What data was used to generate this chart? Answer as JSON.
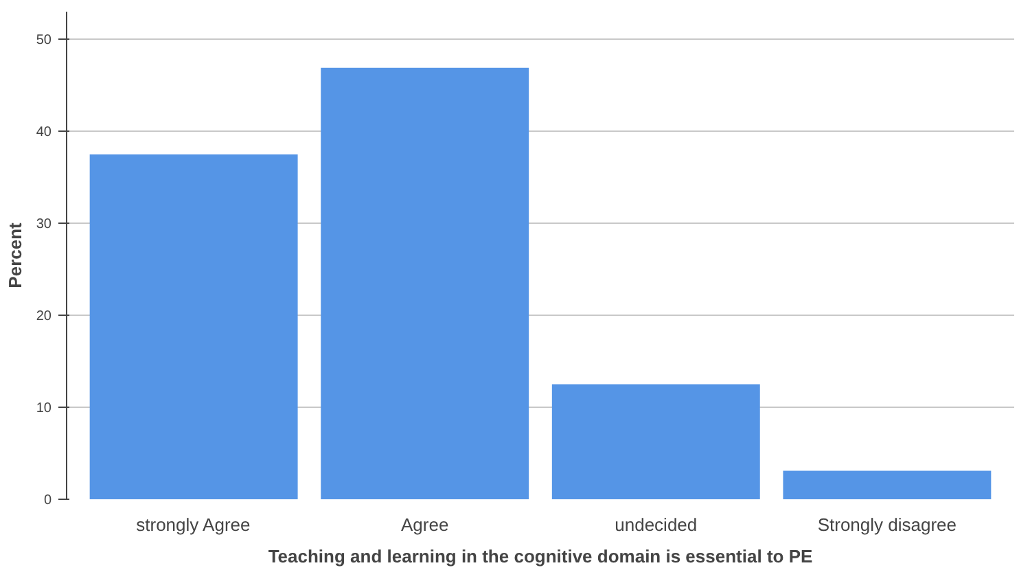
{
  "chart_data": {
    "type": "bar",
    "xlabel": "Teaching and learning in the cognitive domain is essential to PE",
    "ylabel": "Percent",
    "categories": [
      "strongly Agree",
      "Agree",
      "undecided",
      "Strongly disagree"
    ],
    "values": [
      37.5,
      46.9,
      12.5,
      3.1
    ],
    "color": "#5595e6",
    "ylim": [
      0,
      53
    ],
    "yticks": [
      0,
      10,
      20,
      30,
      40,
      50
    ],
    "grid": "y"
  }
}
